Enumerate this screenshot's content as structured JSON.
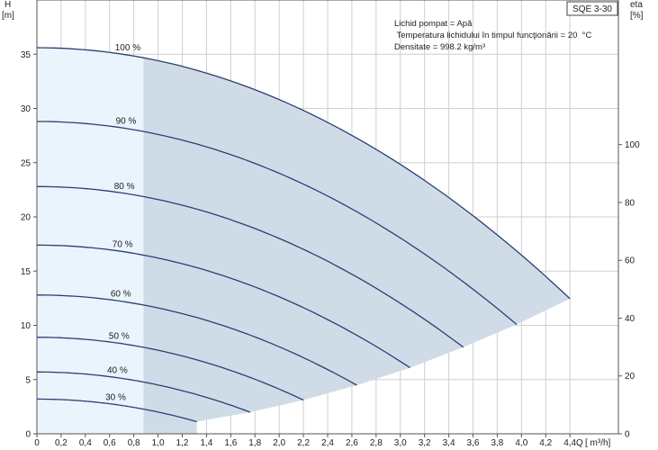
{
  "chart_data": {
    "type": "line",
    "model_label": "SQE 3-30",
    "y_left_label": [
      "H",
      "[m]"
    ],
    "y_right_label": [
      "eta",
      "[%]"
    ],
    "x_label": "Q",
    "x_unit": "[ m³/h]",
    "info_lines": [
      "Lichid pompat = Apă",
      " Temperatura lichidului în timpul funcţionării = 20  °C",
      "Densitate = 998.2  kg/m³"
    ],
    "xlim": [
      0,
      4.8
    ],
    "ylim": [
      0,
      40
    ],
    "y2lim": [
      0,
      150
    ],
    "x_ticks": [
      0,
      0.2,
      0.4,
      0.6,
      0.8,
      1.0,
      1.2,
      1.4,
      1.6,
      1.8,
      2.0,
      2.2,
      2.4,
      2.6,
      2.8,
      3.0,
      3.2,
      3.4,
      3.6,
      3.8,
      4.0,
      4.2,
      4.4
    ],
    "x_tick_labels": [
      "0",
      "0,2",
      "0,4",
      "0,6",
      "0,8",
      "1,0",
      "1,2",
      "1,4",
      "1,6",
      "1,8",
      "2,0",
      "2,2",
      "2,4",
      "2,6",
      "2,8",
      "3,0",
      "3,2",
      "3,4",
      "3,6",
      "3,8",
      "4,0",
      "4,2",
      "4,4"
    ],
    "y_ticks": [
      0,
      5,
      10,
      15,
      20,
      25,
      30,
      35
    ],
    "y2_ticks": [
      0,
      20,
      40,
      60,
      80,
      100
    ],
    "grid": true,
    "light_region_end_q": 0.88,
    "curve_end_q": [
      1.32,
      1.76,
      2.2,
      2.64,
      3.08,
      3.52,
      3.96,
      4.4
    ],
    "series": [
      {
        "name": "30 %",
        "h0": 3.2
      },
      {
        "name": "40 %",
        "h0": 5.7
      },
      {
        "name": "50 %",
        "h0": 8.9
      },
      {
        "name": "60 %",
        "h0": 12.8
      },
      {
        "name": "70 %",
        "h0": 17.4
      },
      {
        "name": "80 %",
        "h0": 22.8
      },
      {
        "name": "90 %",
        "h0": 28.8
      },
      {
        "name": "100 %",
        "h0": 35.6
      }
    ]
  }
}
